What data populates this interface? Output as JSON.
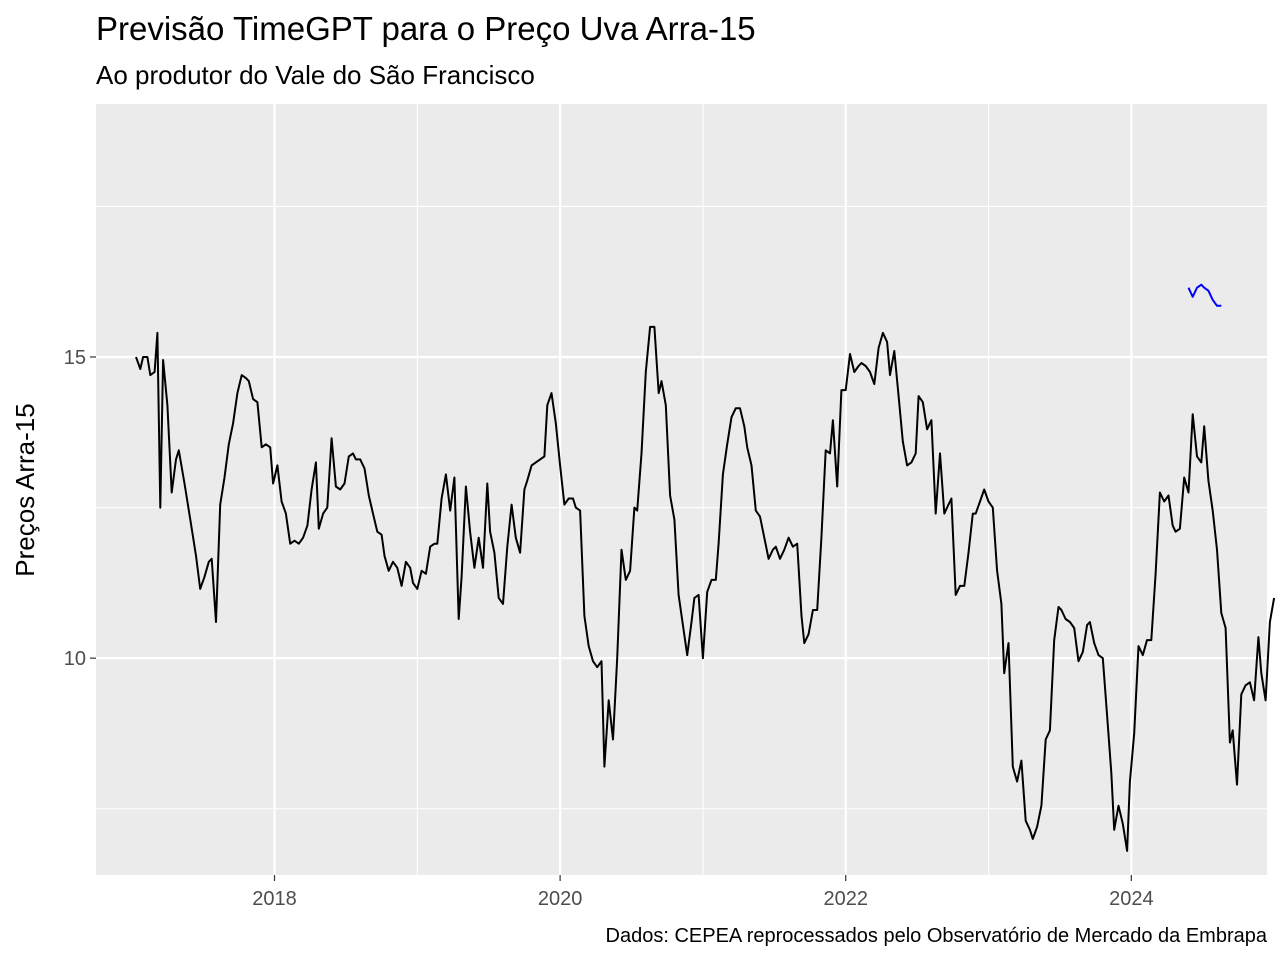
{
  "chart_data": {
    "type": "line",
    "title": "Previsão TimeGPT para o Preço Uva Arra-15",
    "subtitle": "Ao produtor do Vale do São Francisco",
    "ylabel": "Preços Arra-15",
    "xlabel": "",
    "caption": "Dados: CEPEA reprocessados pelo Observatório de Mercado da Embrapa",
    "x_ticks": [
      {
        "value": 2018,
        "label": "2018"
      },
      {
        "value": 2020,
        "label": "2020"
      },
      {
        "value": 2022,
        "label": "2022"
      },
      {
        "value": 2024,
        "label": "2024"
      }
    ],
    "y_ticks": [
      {
        "value": 10,
        "label": "10"
      },
      {
        "value": 15,
        "label": "15"
      }
    ],
    "xlim": [
      2016.75,
      2024.95
    ],
    "ylim": [
      6.4,
      19.2
    ],
    "grid": true,
    "background": "#ebebeb",
    "series": [
      {
        "color": "#000000",
        "points": [
          [
            2017.03,
            15.0
          ],
          [
            2017.06,
            14.8
          ],
          [
            2017.08,
            15.0
          ],
          [
            2017.11,
            15.0
          ],
          [
            2017.13,
            14.7
          ],
          [
            2017.16,
            14.75
          ],
          [
            2017.18,
            15.4
          ],
          [
            2017.2,
            12.5
          ],
          [
            2017.22,
            14.95
          ],
          [
            2017.25,
            14.2
          ],
          [
            2017.28,
            12.75
          ],
          [
            2017.31,
            13.3
          ],
          [
            2017.33,
            13.45
          ],
          [
            2017.37,
            12.9
          ],
          [
            2017.41,
            12.3
          ],
          [
            2017.45,
            11.7
          ],
          [
            2017.48,
            11.15
          ],
          [
            2017.51,
            11.35
          ],
          [
            2017.54,
            11.6
          ],
          [
            2017.56,
            11.65
          ],
          [
            2017.59,
            10.6
          ],
          [
            2017.62,
            12.55
          ],
          [
            2017.65,
            13.0
          ],
          [
            2017.68,
            13.55
          ],
          [
            2017.71,
            13.9
          ],
          [
            2017.74,
            14.4
          ],
          [
            2017.77,
            14.7
          ],
          [
            2017.8,
            14.65
          ],
          [
            2017.82,
            14.6
          ],
          [
            2017.85,
            14.3
          ],
          [
            2017.88,
            14.25
          ],
          [
            2017.91,
            13.5
          ],
          [
            2017.94,
            13.55
          ],
          [
            2017.97,
            13.5
          ],
          [
            2017.99,
            12.9
          ],
          [
            2018.02,
            13.2
          ],
          [
            2018.05,
            12.6
          ],
          [
            2018.08,
            12.4
          ],
          [
            2018.11,
            11.9
          ],
          [
            2018.14,
            11.95
          ],
          [
            2018.17,
            11.9
          ],
          [
            2018.2,
            12.0
          ],
          [
            2018.23,
            12.2
          ],
          [
            2018.26,
            12.8
          ],
          [
            2018.29,
            13.25
          ],
          [
            2018.31,
            12.15
          ],
          [
            2018.34,
            12.4
          ],
          [
            2018.37,
            12.5
          ],
          [
            2018.4,
            13.65
          ],
          [
            2018.43,
            12.85
          ],
          [
            2018.46,
            12.8
          ],
          [
            2018.49,
            12.9
          ],
          [
            2018.52,
            13.35
          ],
          [
            2018.55,
            13.4
          ],
          [
            2018.57,
            13.3
          ],
          [
            2018.6,
            13.3
          ],
          [
            2018.63,
            13.15
          ],
          [
            2018.66,
            12.7
          ],
          [
            2018.69,
            12.4
          ],
          [
            2018.72,
            12.1
          ],
          [
            2018.75,
            12.05
          ],
          [
            2018.77,
            11.7
          ],
          [
            2018.8,
            11.45
          ],
          [
            2018.83,
            11.6
          ],
          [
            2018.86,
            11.5
          ],
          [
            2018.89,
            11.2
          ],
          [
            2018.92,
            11.6
          ],
          [
            2018.95,
            11.5
          ],
          [
            2018.97,
            11.25
          ],
          [
            2019.0,
            11.15
          ],
          [
            2019.03,
            11.45
          ],
          [
            2019.06,
            11.4
          ],
          [
            2019.09,
            11.85
          ],
          [
            2019.12,
            11.9
          ],
          [
            2019.14,
            11.9
          ],
          [
            2019.17,
            12.65
          ],
          [
            2019.2,
            13.05
          ],
          [
            2019.23,
            12.45
          ],
          [
            2019.26,
            13.0
          ],
          [
            2019.29,
            10.65
          ],
          [
            2019.31,
            11.35
          ],
          [
            2019.34,
            12.85
          ],
          [
            2019.37,
            12.1
          ],
          [
            2019.4,
            11.5
          ],
          [
            2019.43,
            12.0
          ],
          [
            2019.46,
            11.5
          ],
          [
            2019.49,
            12.9
          ],
          [
            2019.51,
            12.1
          ],
          [
            2019.54,
            11.75
          ],
          [
            2019.57,
            11.0
          ],
          [
            2019.6,
            10.9
          ],
          [
            2019.63,
            11.85
          ],
          [
            2019.66,
            12.55
          ],
          [
            2019.69,
            12.0
          ],
          [
            2019.72,
            11.75
          ],
          [
            2019.75,
            12.8
          ],
          [
            2019.77,
            12.95
          ],
          [
            2019.8,
            13.2
          ],
          [
            2019.83,
            13.25
          ],
          [
            2019.86,
            13.3
          ],
          [
            2019.89,
            13.35
          ],
          [
            2019.91,
            14.2
          ],
          [
            2019.94,
            14.4
          ],
          [
            2019.97,
            13.9
          ],
          [
            2020.0,
            13.2
          ],
          [
            2020.03,
            12.55
          ],
          [
            2020.06,
            12.65
          ],
          [
            2020.09,
            12.65
          ],
          [
            2020.11,
            12.5
          ],
          [
            2020.14,
            12.45
          ],
          [
            2020.17,
            10.7
          ],
          [
            2020.2,
            10.2
          ],
          [
            2020.23,
            9.95
          ],
          [
            2020.26,
            9.85
          ],
          [
            2020.29,
            9.95
          ],
          [
            2020.31,
            8.2
          ],
          [
            2020.34,
            9.3
          ],
          [
            2020.37,
            8.65
          ],
          [
            2020.4,
            10.0
          ],
          [
            2020.43,
            11.8
          ],
          [
            2020.46,
            11.3
          ],
          [
            2020.49,
            11.45
          ],
          [
            2020.52,
            12.5
          ],
          [
            2020.54,
            12.45
          ],
          [
            2020.57,
            13.4
          ],
          [
            2020.6,
            14.75
          ],
          [
            2020.63,
            15.5
          ],
          [
            2020.66,
            15.5
          ],
          [
            2020.69,
            14.4
          ],
          [
            2020.71,
            14.6
          ],
          [
            2020.74,
            14.2
          ],
          [
            2020.77,
            12.7
          ],
          [
            2020.8,
            12.3
          ],
          [
            2020.83,
            11.05
          ],
          [
            2020.86,
            10.55
          ],
          [
            2020.89,
            10.05
          ],
          [
            2020.92,
            10.6
          ],
          [
            2020.94,
            11.0
          ],
          [
            2020.97,
            11.05
          ],
          [
            2021.0,
            10.0
          ],
          [
            2021.03,
            11.1
          ],
          [
            2021.06,
            11.3
          ],
          [
            2021.09,
            11.3
          ],
          [
            2021.11,
            11.9
          ],
          [
            2021.14,
            13.05
          ],
          [
            2021.17,
            13.55
          ],
          [
            2021.2,
            14.0
          ],
          [
            2021.23,
            14.15
          ],
          [
            2021.26,
            14.15
          ],
          [
            2021.29,
            13.85
          ],
          [
            2021.31,
            13.5
          ],
          [
            2021.34,
            13.2
          ],
          [
            2021.37,
            12.45
          ],
          [
            2021.4,
            12.35
          ],
          [
            2021.43,
            12.0
          ],
          [
            2021.46,
            11.65
          ],
          [
            2021.49,
            11.8
          ],
          [
            2021.51,
            11.85
          ],
          [
            2021.54,
            11.65
          ],
          [
            2021.57,
            11.8
          ],
          [
            2021.6,
            12.0
          ],
          [
            2021.63,
            11.85
          ],
          [
            2021.66,
            11.9
          ],
          [
            2021.69,
            10.7
          ],
          [
            2021.71,
            10.25
          ],
          [
            2021.74,
            10.4
          ],
          [
            2021.77,
            10.8
          ],
          [
            2021.8,
            10.8
          ],
          [
            2021.83,
            12.0
          ],
          [
            2021.86,
            13.45
          ],
          [
            2021.89,
            13.4
          ],
          [
            2021.91,
            13.95
          ],
          [
            2021.94,
            12.85
          ],
          [
            2021.97,
            14.45
          ],
          [
            2022.0,
            14.45
          ],
          [
            2022.03,
            15.05
          ],
          [
            2022.06,
            14.75
          ],
          [
            2022.09,
            14.85
          ],
          [
            2022.11,
            14.9
          ],
          [
            2022.14,
            14.85
          ],
          [
            2022.17,
            14.75
          ],
          [
            2022.2,
            14.55
          ],
          [
            2022.23,
            15.15
          ],
          [
            2022.26,
            15.4
          ],
          [
            2022.29,
            15.25
          ],
          [
            2022.31,
            14.7
          ],
          [
            2022.34,
            15.1
          ],
          [
            2022.37,
            14.35
          ],
          [
            2022.4,
            13.6
          ],
          [
            2022.43,
            13.2
          ],
          [
            2022.46,
            13.25
          ],
          [
            2022.49,
            13.4
          ],
          [
            2022.51,
            14.35
          ],
          [
            2022.54,
            14.25
          ],
          [
            2022.57,
            13.8
          ],
          [
            2022.6,
            13.95
          ],
          [
            2022.63,
            12.4
          ],
          [
            2022.66,
            13.4
          ],
          [
            2022.69,
            12.4
          ],
          [
            2022.71,
            12.5
          ],
          [
            2022.74,
            12.65
          ],
          [
            2022.77,
            11.05
          ],
          [
            2022.8,
            11.2
          ],
          [
            2022.83,
            11.2
          ],
          [
            2022.86,
            11.75
          ],
          [
            2022.89,
            12.4
          ],
          [
            2022.91,
            12.4
          ],
          [
            2022.94,
            12.6
          ],
          [
            2022.97,
            12.8
          ],
          [
            2023.0,
            12.6
          ],
          [
            2023.03,
            12.5
          ],
          [
            2023.06,
            11.45
          ],
          [
            2023.09,
            10.9
          ],
          [
            2023.11,
            9.75
          ],
          [
            2023.14,
            10.25
          ],
          [
            2023.17,
            8.2
          ],
          [
            2023.2,
            7.95
          ],
          [
            2023.23,
            8.3
          ],
          [
            2023.26,
            7.3
          ],
          [
            2023.29,
            7.15
          ],
          [
            2023.31,
            7.0
          ],
          [
            2023.34,
            7.2
          ],
          [
            2023.37,
            7.55
          ],
          [
            2023.4,
            8.65
          ],
          [
            2023.43,
            8.8
          ],
          [
            2023.46,
            10.3
          ],
          [
            2023.49,
            10.85
          ],
          [
            2023.51,
            10.8
          ],
          [
            2023.54,
            10.65
          ],
          [
            2023.57,
            10.6
          ],
          [
            2023.6,
            10.5
          ],
          [
            2023.63,
            9.95
          ],
          [
            2023.66,
            10.1
          ],
          [
            2023.69,
            10.55
          ],
          [
            2023.71,
            10.6
          ],
          [
            2023.74,
            10.25
          ],
          [
            2023.77,
            10.05
          ],
          [
            2023.8,
            10.0
          ],
          [
            2023.83,
            9.05
          ],
          [
            2023.86,
            8.1
          ],
          [
            2023.88,
            7.15
          ],
          [
            2023.91,
            7.55
          ],
          [
            2023.94,
            7.25
          ],
          [
            2023.97,
            6.8
          ],
          [
            2023.99,
            7.95
          ],
          [
            2024.02,
            8.75
          ],
          [
            2024.05,
            10.2
          ],
          [
            2024.08,
            10.05
          ],
          [
            2024.11,
            10.3
          ],
          [
            2024.14,
            10.3
          ],
          [
            2024.17,
            11.4
          ],
          [
            2024.2,
            12.75
          ],
          [
            2024.23,
            12.6
          ],
          [
            2024.26,
            12.7
          ],
          [
            2024.29,
            12.2
          ],
          [
            2024.31,
            12.1
          ],
          [
            2024.34,
            12.15
          ],
          [
            2024.37,
            13.0
          ],
          [
            2024.4,
            12.75
          ],
          [
            2024.43,
            14.05
          ],
          [
            2024.46,
            13.35
          ],
          [
            2024.49,
            13.25
          ],
          [
            2024.51,
            13.85
          ],
          [
            2024.54,
            12.95
          ],
          [
            2024.57,
            12.45
          ],
          [
            2024.6,
            11.8
          ],
          [
            2024.63,
            10.75
          ],
          [
            2024.66,
            10.5
          ],
          [
            2024.69,
            8.6
          ],
          [
            2024.71,
            8.8
          ],
          [
            2024.74,
            7.9
          ],
          [
            2024.77,
            9.4
          ],
          [
            2024.8,
            9.55
          ],
          [
            2024.83,
            9.6
          ],
          [
            2024.86,
            9.3
          ],
          [
            2024.89,
            10.35
          ],
          [
            2024.91,
            9.75
          ],
          [
            2024.94,
            9.3
          ],
          [
            2024.97,
            10.6
          ],
          [
            2025.0,
            11.0
          ]
        ]
      },
      {
        "color": "#0000ff",
        "points": [
          [
            2024.4,
            16.15
          ],
          [
            2024.43,
            16.0
          ],
          [
            2024.46,
            16.15
          ],
          [
            2024.49,
            16.2
          ],
          [
            2024.51,
            16.15
          ],
          [
            2024.54,
            16.1
          ],
          [
            2024.57,
            15.95
          ],
          [
            2024.6,
            15.85
          ],
          [
            2024.63,
            15.85
          ]
        ]
      }
    ]
  }
}
